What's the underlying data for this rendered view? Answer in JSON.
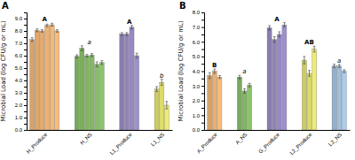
{
  "chart_data": [
    {
      "type": "bar",
      "title": "A",
      "y_label": "Microbial Load (log CFU/g or mL)",
      "categories": [
        "H_Produce",
        "H_NS",
        "L1_Produce",
        "L1_NS"
      ],
      "annotations": [
        "A",
        "a",
        "A",
        "b"
      ],
      "values": [
        [
          7.3,
          8.05,
          8.0,
          8.45,
          8.5,
          8.0
        ],
        [
          5.95,
          6.6,
          6.0,
          6.05,
          5.3,
          5.45
        ],
        [
          7.75,
          7.75,
          8.3,
          6.0
        ],
        [
          3.3,
          3.85,
          2.0
        ]
      ],
      "errors": [
        [
          0.15,
          0.12,
          0.1,
          0.1,
          0.12,
          0.1
        ],
        [
          0.12,
          0.2,
          0.1,
          0.12,
          0.2,
          0.15
        ],
        [
          0.12,
          0.12,
          0.15,
          0.2
        ],
        [
          0.2,
          0.25,
          0.3
        ]
      ],
      "colors": [
        "#F5B878",
        "#88C068",
        "#9B8DC8",
        "#E8E870"
      ],
      "ylim": [
        0,
        9.5
      ],
      "yticks": [
        {
          "value": 0,
          "label": "0.0"
        },
        {
          "value": 0.5,
          "label": null
        },
        {
          "value": 1,
          "label": "1.0"
        },
        {
          "value": 1.5,
          "label": null
        },
        {
          "value": 2,
          "label": "2.0"
        },
        {
          "value": 2.5,
          "label": null
        },
        {
          "value": 3,
          "label": "3.0"
        },
        {
          "value": 3.5,
          "label": null
        },
        {
          "value": 4,
          "label": "4.0"
        },
        {
          "value": 4.5,
          "label": null
        },
        {
          "value": 5,
          "label": "5.0"
        },
        {
          "value": 5.5,
          "label": null
        },
        {
          "value": 6,
          "label": "6.0"
        },
        {
          "value": 6.5,
          "label": null
        },
        {
          "value": 7,
          "label": "7.0"
        },
        {
          "value": 7.5,
          "label": null
        },
        {
          "value": 8,
          "label": "8.0"
        },
        {
          "value": 8.5,
          "label": null
        },
        {
          "value": 9,
          "label": "9.0"
        },
        {
          "value": 9.5,
          "label": null
        }
      ]
    },
    {
      "type": "bar",
      "title": "B",
      "y_label": "Microbial Load (log CFU/g or mL)",
      "categories": [
        "A_Produce",
        "A_NS",
        "G_Produce",
        "L2_Produce",
        "L2_NS"
      ],
      "annotations": [
        "B",
        "a",
        "A",
        "AB",
        "a"
      ],
      "values": [
        [
          3.7,
          4.0,
          3.6
        ],
        [
          3.6,
          2.65,
          3.05
        ],
        [
          6.95,
          6.15,
          6.5,
          7.15
        ],
        [
          4.75,
          3.85,
          5.5
        ],
        [
          4.35,
          4.35,
          4.0
        ]
      ],
      "errors": [
        [
          0.2,
          0.15,
          0.1
        ],
        [
          0.12,
          0.15,
          0.12
        ],
        [
          0.15,
          0.2,
          0.18,
          0.15
        ],
        [
          0.25,
          0.2,
          0.2
        ],
        [
          0.12,
          0.1,
          0.1
        ]
      ],
      "colors": [
        "#F5B878",
        "#88C068",
        "#9B8DC8",
        "#E8E870",
        "#A8C8E8"
      ],
      "ylim": [
        0,
        8.0
      ],
      "yticks": [
        {
          "value": 0,
          "label": "0.0"
        },
        {
          "value": 0.5,
          "label": null
        },
        {
          "value": 1,
          "label": "1.0"
        },
        {
          "value": 1.5,
          "label": null
        },
        {
          "value": 2,
          "label": "2.0"
        },
        {
          "value": 2.5,
          "label": null
        },
        {
          "value": 3,
          "label": "3.0"
        },
        {
          "value": 3.5,
          "label": null
        },
        {
          "value": 4,
          "label": "4.0"
        },
        {
          "value": 4.5,
          "label": null
        },
        {
          "value": 5,
          "label": "5.0"
        },
        {
          "value": 5.5,
          "label": null
        },
        {
          "value": 6,
          "label": "6.0"
        },
        {
          "value": 6.5,
          "label": null
        },
        {
          "value": 7,
          "label": "7.0"
        },
        {
          "value": 7.5,
          "label": null
        },
        {
          "value": 8,
          "label": "8.0"
        }
      ]
    }
  ]
}
